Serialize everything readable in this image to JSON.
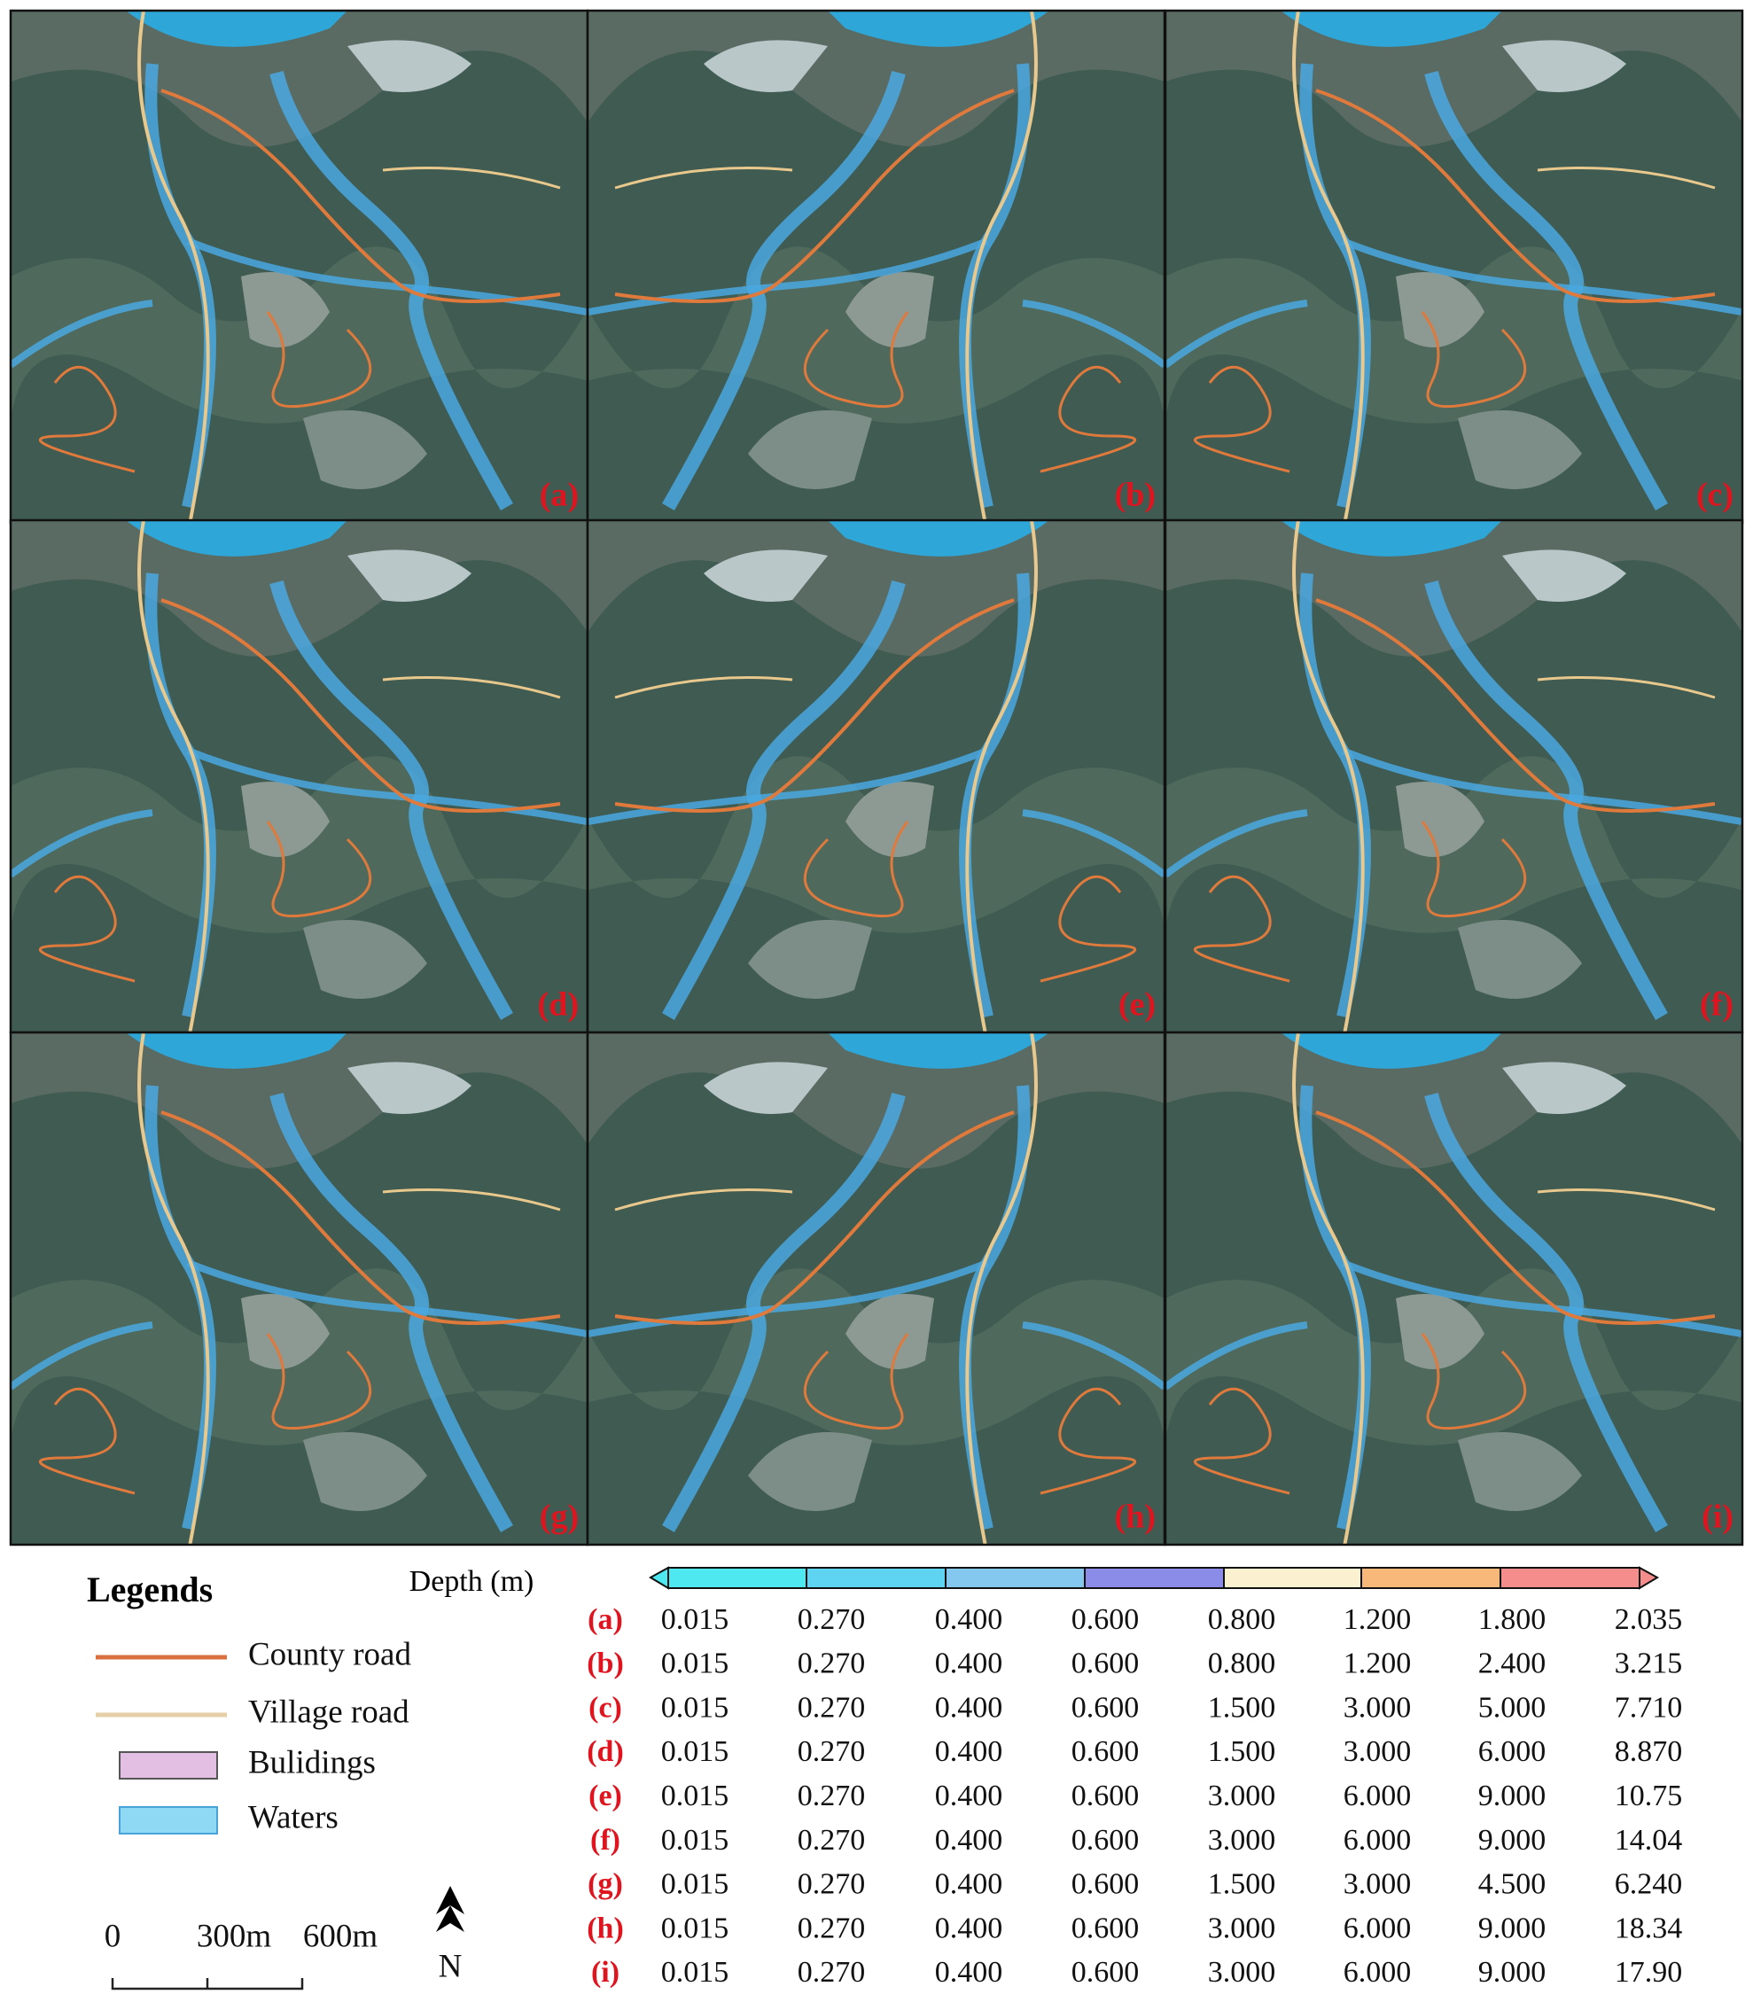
{
  "panels": [
    "(a)",
    "(b)",
    "(c)",
    "(d)",
    "(e)",
    "(f)",
    "(g)",
    "(h)",
    "(i)"
  ],
  "legend": {
    "title": "Legends",
    "items": [
      "County road",
      "Village road",
      "Bulidings",
      "Waters"
    ]
  },
  "scale_bar": {
    "labels": [
      "0",
      "300m",
      "600m"
    ],
    "north": "N"
  },
  "depth_table": {
    "label": "Depth (m)",
    "rows": [
      {
        "label": "(a)",
        "values": [
          "0.015",
          "0.270",
          "0.400",
          "0.600",
          "0.800",
          "1.200",
          "1.800",
          "2.035"
        ]
      },
      {
        "label": "(b)",
        "values": [
          "0.015",
          "0.270",
          "0.400",
          "0.600",
          "0.800",
          "1.200",
          "2.400",
          "3.215"
        ]
      },
      {
        "label": "(c)",
        "values": [
          "0.015",
          "0.270",
          "0.400",
          "0.600",
          "1.500",
          "3.000",
          "5.000",
          "7.710"
        ]
      },
      {
        "label": "(d)",
        "values": [
          "0.015",
          "0.270",
          "0.400",
          "0.600",
          "1.500",
          "3.000",
          "6.000",
          "8.870"
        ]
      },
      {
        "label": "(e)",
        "values": [
          "0.015",
          "0.270",
          "0.400",
          "0.600",
          "3.000",
          "6.000",
          "9.000",
          "10.75"
        ]
      },
      {
        "label": "(f)",
        "values": [
          "0.015",
          "0.270",
          "0.400",
          "0.600",
          "3.000",
          "6.000",
          "9.000",
          "14.04"
        ]
      },
      {
        "label": "(g)",
        "values": [
          "0.015",
          "0.270",
          "0.400",
          "0.600",
          "1.500",
          "3.000",
          "4.500",
          "6.240"
        ]
      },
      {
        "label": "(h)",
        "values": [
          "0.015",
          "0.270",
          "0.400",
          "0.600",
          "3.000",
          "6.000",
          "9.000",
          "18.34"
        ]
      },
      {
        "label": "(i)",
        "values": [
          "0.015",
          "0.270",
          "0.400",
          "0.600",
          "3.000",
          "6.000",
          "9.000",
          "17.90"
        ]
      }
    ]
  }
}
